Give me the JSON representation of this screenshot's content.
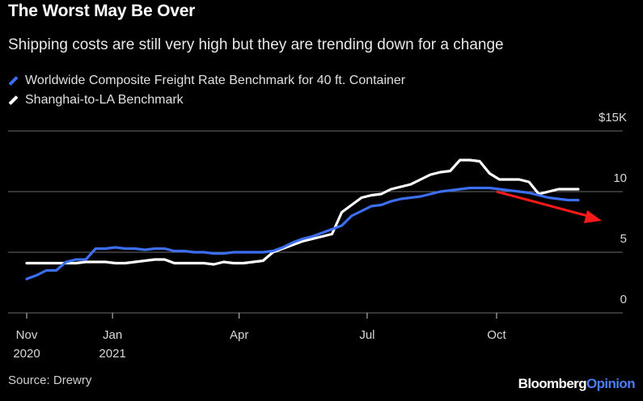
{
  "title": "The Worst May Be Over",
  "subtitle": "Shipping costs are still very high but they are trending down for a change",
  "source": "Source: Drewry",
  "brand": {
    "part1": "Bloomberg",
    "part2": "Opinion"
  },
  "colors": {
    "background": "#000000",
    "series_blue": "#3b6ef0",
    "series_white": "#ffffff",
    "grid": "#6a6a6a",
    "arrow": "#ff1a1a"
  },
  "chart_data": {
    "type": "line",
    "title": "The Worst May Be Over",
    "subtitle": "Shipping costs are still very high but they are trending down for a change",
    "y_ticks": [
      {
        "value": 0,
        "label": "0"
      },
      {
        "value": 5,
        "label": "5"
      },
      {
        "value": 10,
        "label": "10"
      },
      {
        "value": 15,
        "label": "$15K"
      }
    ],
    "x_ticks": [
      {
        "x": "2020-11-01",
        "label": "Nov",
        "sublabel": "2020"
      },
      {
        "x": "2021-01-01",
        "label": "Jan",
        "sublabel": "2021"
      },
      {
        "x": "2021-04-01",
        "label": "Apr",
        "sublabel": ""
      },
      {
        "x": "2021-07-01",
        "label": "Jul",
        "sublabel": ""
      },
      {
        "x": "2021-10-01",
        "label": "Oct",
        "sublabel": ""
      }
    ],
    "ylim": [
      0,
      15
    ],
    "xlim": [
      "2020-11-01",
      "2022-01-01"
    ],
    "grid": true,
    "legend": "top-left",
    "annotation": "downward red arrow near the end of the series",
    "series": [
      {
        "name": "Worldwide Composite Freight Rate Benchmark for 40 ft. Container",
        "color": "#3b6ef0",
        "x": [
          "2020-11-01",
          "2020-11-08",
          "2020-11-15",
          "2020-11-22",
          "2020-11-29",
          "2020-12-06",
          "2020-12-13",
          "2020-12-20",
          "2020-12-27",
          "2021-01-03",
          "2021-01-10",
          "2021-01-17",
          "2021-01-24",
          "2021-01-31",
          "2021-02-07",
          "2021-02-14",
          "2021-02-21",
          "2021-02-28",
          "2021-03-07",
          "2021-03-14",
          "2021-03-21",
          "2021-03-28",
          "2021-04-04",
          "2021-04-11",
          "2021-04-18",
          "2021-04-25",
          "2021-05-02",
          "2021-05-09",
          "2021-05-16",
          "2021-05-23",
          "2021-05-30",
          "2021-06-06",
          "2021-06-13",
          "2021-06-20",
          "2021-06-27",
          "2021-07-04",
          "2021-07-11",
          "2021-07-18",
          "2021-07-25",
          "2021-08-01",
          "2021-08-08",
          "2021-08-15",
          "2021-08-22",
          "2021-08-29",
          "2021-09-05",
          "2021-09-12",
          "2021-09-19",
          "2021-09-26",
          "2021-10-03",
          "2021-10-10",
          "2021-10-17",
          "2021-10-24",
          "2021-10-31",
          "2021-11-07",
          "2021-11-14",
          "2021-11-21",
          "2021-11-28"
        ],
        "values": [
          2.8,
          3.1,
          3.5,
          3.5,
          4.2,
          4.4,
          4.4,
          5.3,
          5.3,
          5.4,
          5.3,
          5.3,
          5.2,
          5.3,
          5.3,
          5.1,
          5.1,
          5.0,
          5.0,
          4.9,
          4.9,
          5.0,
          5.0,
          5.0,
          5.0,
          5.1,
          5.4,
          5.8,
          6.1,
          6.3,
          6.6,
          6.9,
          7.2,
          8.0,
          8.4,
          8.8,
          8.9,
          9.2,
          9.4,
          9.5,
          9.6,
          9.8,
          10.0,
          10.1,
          10.2,
          10.3,
          10.3,
          10.3,
          10.2,
          10.1,
          10.0,
          9.9,
          9.7,
          9.5,
          9.4,
          9.3,
          9.3
        ]
      },
      {
        "name": "Shanghai-to-LA Benchmark",
        "color": "#ffffff",
        "x": [
          "2020-11-01",
          "2020-11-08",
          "2020-11-15",
          "2020-11-22",
          "2020-11-29",
          "2020-12-06",
          "2020-12-13",
          "2020-12-20",
          "2020-12-27",
          "2021-01-03",
          "2021-01-10",
          "2021-01-17",
          "2021-01-24",
          "2021-01-31",
          "2021-02-07",
          "2021-02-14",
          "2021-02-21",
          "2021-02-28",
          "2021-03-07",
          "2021-03-14",
          "2021-03-21",
          "2021-03-28",
          "2021-04-04",
          "2021-04-11",
          "2021-04-18",
          "2021-04-25",
          "2021-05-02",
          "2021-05-09",
          "2021-05-16",
          "2021-05-23",
          "2021-05-30",
          "2021-06-06",
          "2021-06-13",
          "2021-06-20",
          "2021-06-27",
          "2021-07-04",
          "2021-07-11",
          "2021-07-18",
          "2021-07-25",
          "2021-08-01",
          "2021-08-08",
          "2021-08-15",
          "2021-08-22",
          "2021-08-29",
          "2021-09-05",
          "2021-09-12",
          "2021-09-19",
          "2021-09-26",
          "2021-10-03",
          "2021-10-10",
          "2021-10-17",
          "2021-10-24",
          "2021-10-31",
          "2021-11-07",
          "2021-11-14",
          "2021-11-21",
          "2021-11-28"
        ],
        "values": [
          4.1,
          4.1,
          4.1,
          4.1,
          4.1,
          4.1,
          4.2,
          4.2,
          4.2,
          4.1,
          4.1,
          4.2,
          4.3,
          4.4,
          4.4,
          4.1,
          4.1,
          4.1,
          4.1,
          4.0,
          4.2,
          4.1,
          4.1,
          4.2,
          4.3,
          5.0,
          5.3,
          5.6,
          5.9,
          6.1,
          6.3,
          6.5,
          8.3,
          8.9,
          9.5,
          9.7,
          9.8,
          10.2,
          10.4,
          10.6,
          11.0,
          11.4,
          11.6,
          11.7,
          12.6,
          12.6,
          12.5,
          11.5,
          11.0,
          11.0,
          11.0,
          10.8,
          9.8,
          10.0,
          10.2,
          10.2,
          10.2
        ]
      }
    ]
  }
}
